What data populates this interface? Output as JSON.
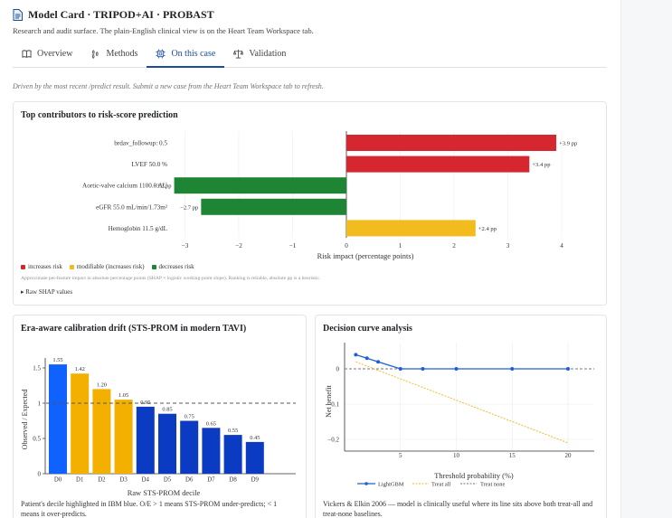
{
  "header": {
    "title": "Model Card · TRIPOD+AI · PROBAST",
    "subtitle": "Research and audit surface. The plain-English clinical view is on the Heart Team Workspace tab."
  },
  "tabs": [
    {
      "label": "Overview",
      "icon": "book-icon"
    },
    {
      "label": "Methods",
      "icon": "steps-icon"
    },
    {
      "label": "On this case",
      "icon": "chip-icon",
      "active": true
    },
    {
      "label": "Validation",
      "icon": "scale-icon"
    }
  ],
  "note": "Driven by the most recent /predict result. Submit a new case from the Heart Team Workspace tab to refresh.",
  "colors": {
    "increase": "#d6262f",
    "modifiable": "#f2bc1f",
    "decrease": "#1e8535",
    "ibm_blue": "#0f62fe",
    "decile_gold": "#f4b000",
    "decile_navy": "#0b3bc2",
    "accent": "#1a4d9c"
  },
  "contributors": {
    "title": "Top contributors to risk-score prediction",
    "xlabel": "Risk impact (percentage points)",
    "legend": {
      "increases": "increases risk",
      "modifiable": "modifiable (increases risk)",
      "decreases": "decreases risk"
    },
    "approx_note": "Approximate per-feature impact in absolute percentage points (SHAP × logistic working-point slope). Ranking is reliable, absolute pp is a heuristic.",
    "raw_shap_label": "Raw SHAP values"
  },
  "calibration": {
    "title": "Era-aware calibration drift (STS-PROM in modern TAVI)",
    "ylabel": "Observed / Expected",
    "xlabel": "Raw STS-PROM decile",
    "caption": "Patient's decile highlighted in IBM blue. O/E > 1 means STS-PROM under-predicts; < 1 means it over-predicts."
  },
  "dca": {
    "title": "Decision curve analysis",
    "ylabel": "Net benefit",
    "xlabel": "Threshold probability (%)",
    "legend": {
      "model": "LightGBM",
      "all": "Treat all",
      "none": "Treat none"
    },
    "caption": "Vickers & Elkin 2006 — model is clinically useful where its line sits above both treat-all and treat-none baselines."
  },
  "chart_data": [
    {
      "type": "bar",
      "orientation": "horizontal",
      "title": "Top contributors to risk-score prediction",
      "xlabel": "Risk impact (percentage points)",
      "categories": [
        "brdav_followup: 0.5",
        "LVEF 50.0 %",
        "Aortic-valve calcium 1100.0 AU",
        "eGFR 55.0 mL/min/1.73m²",
        "Hemoglobin 11.5 g/dL"
      ],
      "values": [
        3.9,
        3.4,
        -3.2,
        -2.7,
        2.4
      ],
      "value_labels": [
        "+3.9 pp",
        "+3.4 pp",
        "−3.2 pp",
        "−2.7 pp",
        "+2.4 pp"
      ],
      "kinds": [
        "increase",
        "increase",
        "decrease",
        "decrease",
        "modifiable"
      ],
      "xticks": [
        "−3",
        "−2",
        "−1",
        "0",
        "1",
        "2",
        "3",
        "4"
      ],
      "xlim": [
        -3.3,
        4.3
      ],
      "grid": true
    },
    {
      "type": "bar",
      "title": "Era-aware calibration drift (STS-PROM in modern TAVI)",
      "xlabel": "Raw STS-PROM decile",
      "ylabel": "Observed / Expected",
      "categories": [
        "D0",
        "D1",
        "D2",
        "D3",
        "D4",
        "D5",
        "D6",
        "D7",
        "D8",
        "D9"
      ],
      "values": [
        1.55,
        1.42,
        1.2,
        1.05,
        0.95,
        0.85,
        0.75,
        0.65,
        0.55,
        0.45
      ],
      "value_labels": [
        "1.55",
        "1.42",
        "1.20",
        "1.05",
        "0.95",
        "0.85",
        "0.75",
        "0.65",
        "0.55",
        "0.45"
      ],
      "bar_colors": [
        "ibm_blue",
        "decile_gold",
        "decile_gold",
        "decile_gold",
        "decile_navy",
        "decile_navy",
        "decile_navy",
        "decile_navy",
        "decile_navy",
        "decile_navy"
      ],
      "highlighted_decile": "D0",
      "reference_line": 1,
      "yticks": [
        "0",
        "0.5",
        "1",
        "1.5"
      ],
      "ylim": [
        0,
        1.65
      ],
      "grid": false
    },
    {
      "type": "line",
      "title": "Decision curve analysis",
      "xlabel": "Threshold probability (%)",
      "ylabel": "Net benefit",
      "series": [
        {
          "name": "LightGBM",
          "x": [
            1,
            2,
            3,
            5,
            7,
            10,
            15,
            20
          ],
          "y": [
            0.04,
            0.03,
            0.02,
            0.0,
            0.0,
            0.0,
            0.0,
            0.0
          ]
        },
        {
          "name": "Treat all",
          "x": [
            1,
            20
          ],
          "y": [
            0.02,
            -0.21
          ]
        },
        {
          "name": "Treat none",
          "x": [
            0,
            20
          ],
          "y": [
            0,
            0
          ]
        }
      ],
      "xticks": [
        "5",
        "10",
        "15",
        "20"
      ],
      "yticks": [
        "0",
        "−0.1",
        "−0.2"
      ],
      "xlim": [
        0,
        21
      ],
      "ylim": [
        -0.22,
        0.045
      ],
      "legend_position": "bottom",
      "grid": true
    }
  ]
}
